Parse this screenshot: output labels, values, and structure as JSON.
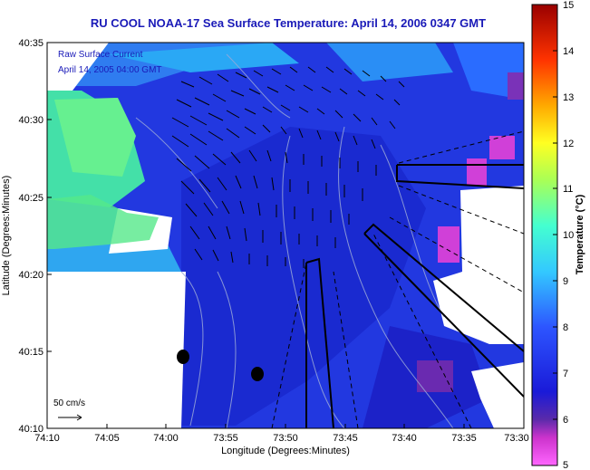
{
  "title": "RU COOL  NOAA-17  Sea Surface Temperature:  April 14, 2006 0347 GMT",
  "inset": {
    "line1": "Raw Surface Current",
    "line2": "April 14, 2005 04:00 GMT"
  },
  "scale": {
    "label": "50 cm/s"
  },
  "axes": {
    "xlabel": "Longitude (Degrees:Minutes)",
    "ylabel": "Latitude (Degrees:Minutes)",
    "xticks": [
      "74:10",
      "74:05",
      "74:00",
      "73:55",
      "73:50",
      "73:45",
      "73:40",
      "73:35",
      "73:30"
    ],
    "yticks": [
      "40:35",
      "40:30",
      "40:25",
      "40:20",
      "40:15",
      "40:10"
    ]
  },
  "colorbar": {
    "label": "Temperature (°C)",
    "ticks": [
      "15",
      "14",
      "13",
      "12",
      "11",
      "10",
      "9",
      "8",
      "7",
      "6",
      "5"
    ],
    "min": 5,
    "max": 15
  },
  "colors": {
    "title": "#1a1ab8",
    "sea_base": "#2238e0",
    "land": "#ffffff",
    "vectors": "#000000"
  }
}
